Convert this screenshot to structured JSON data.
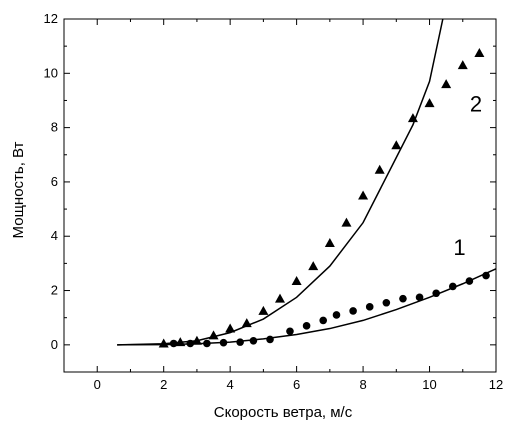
{
  "chart_data": {
    "type": "scatter",
    "xlabel": "Скорость ветра, м/с",
    "ylabel": "Мощность, Вт",
    "xlim": [
      -1,
      12
    ],
    "ylim": [
      -1,
      12
    ],
    "x_ticks": [
      0,
      2,
      4,
      6,
      8,
      10,
      12
    ],
    "y_ticks": [
      0,
      2,
      4,
      6,
      8,
      10,
      12
    ],
    "grid": false,
    "annotations": [
      {
        "text": "1",
        "x": 10.9,
        "y": 3.3
      },
      {
        "text": "2",
        "x": 11.4,
        "y": 8.6
      }
    ],
    "series": [
      {
        "marker": "circle",
        "points": [
          [
            2.3,
            0.05
          ],
          [
            2.8,
            0.05
          ],
          [
            3.3,
            0.05
          ],
          [
            3.8,
            0.08
          ],
          [
            4.3,
            0.1
          ],
          [
            4.7,
            0.15
          ],
          [
            5.2,
            0.2
          ],
          [
            5.8,
            0.5
          ],
          [
            6.3,
            0.7
          ],
          [
            6.8,
            0.9
          ],
          [
            7.2,
            1.1
          ],
          [
            7.7,
            1.25
          ],
          [
            8.2,
            1.4
          ],
          [
            8.7,
            1.55
          ],
          [
            9.2,
            1.7
          ],
          [
            9.7,
            1.75
          ],
          [
            10.2,
            1.9
          ],
          [
            10.7,
            2.15
          ],
          [
            11.2,
            2.35
          ],
          [
            11.7,
            2.55
          ]
        ]
      },
      {
        "marker": "triangle",
        "points": [
          [
            2.0,
            0.05
          ],
          [
            2.5,
            0.1
          ],
          [
            3.0,
            0.15
          ],
          [
            3.5,
            0.35
          ],
          [
            4.0,
            0.6
          ],
          [
            4.5,
            0.8
          ],
          [
            5.0,
            1.25
          ],
          [
            5.5,
            1.7
          ],
          [
            6.0,
            2.35
          ],
          [
            6.5,
            2.9
          ],
          [
            7.0,
            3.75
          ],
          [
            7.5,
            4.5
          ],
          [
            8.0,
            5.5
          ],
          [
            8.5,
            6.45
          ],
          [
            9.0,
            7.35
          ],
          [
            9.5,
            8.35
          ],
          [
            10.0,
            8.9
          ],
          [
            10.5,
            9.6
          ],
          [
            11.0,
            10.3
          ],
          [
            11.5,
            10.75
          ]
        ]
      },
      {
        "marker": "line",
        "points": [
          [
            0.6,
            0.0
          ],
          [
            2,
            0.01
          ],
          [
            3,
            0.04
          ],
          [
            4,
            0.1
          ],
          [
            5,
            0.22
          ],
          [
            6,
            0.38
          ],
          [
            7,
            0.6
          ],
          [
            8,
            0.9
          ],
          [
            9,
            1.3
          ],
          [
            10,
            1.75
          ],
          [
            11,
            2.25
          ],
          [
            12,
            2.8
          ]
        ]
      },
      {
        "marker": "line",
        "points": [
          [
            0.6,
            0.0
          ],
          [
            2,
            0.04
          ],
          [
            3,
            0.15
          ],
          [
            4,
            0.45
          ],
          [
            5,
            0.95
          ],
          [
            6,
            1.75
          ],
          [
            7,
            2.9
          ],
          [
            8,
            4.5
          ],
          [
            9,
            6.9
          ],
          [
            9.5,
            8.1
          ],
          [
            10,
            9.7
          ],
          [
            10.4,
            12.0
          ]
        ]
      }
    ]
  }
}
